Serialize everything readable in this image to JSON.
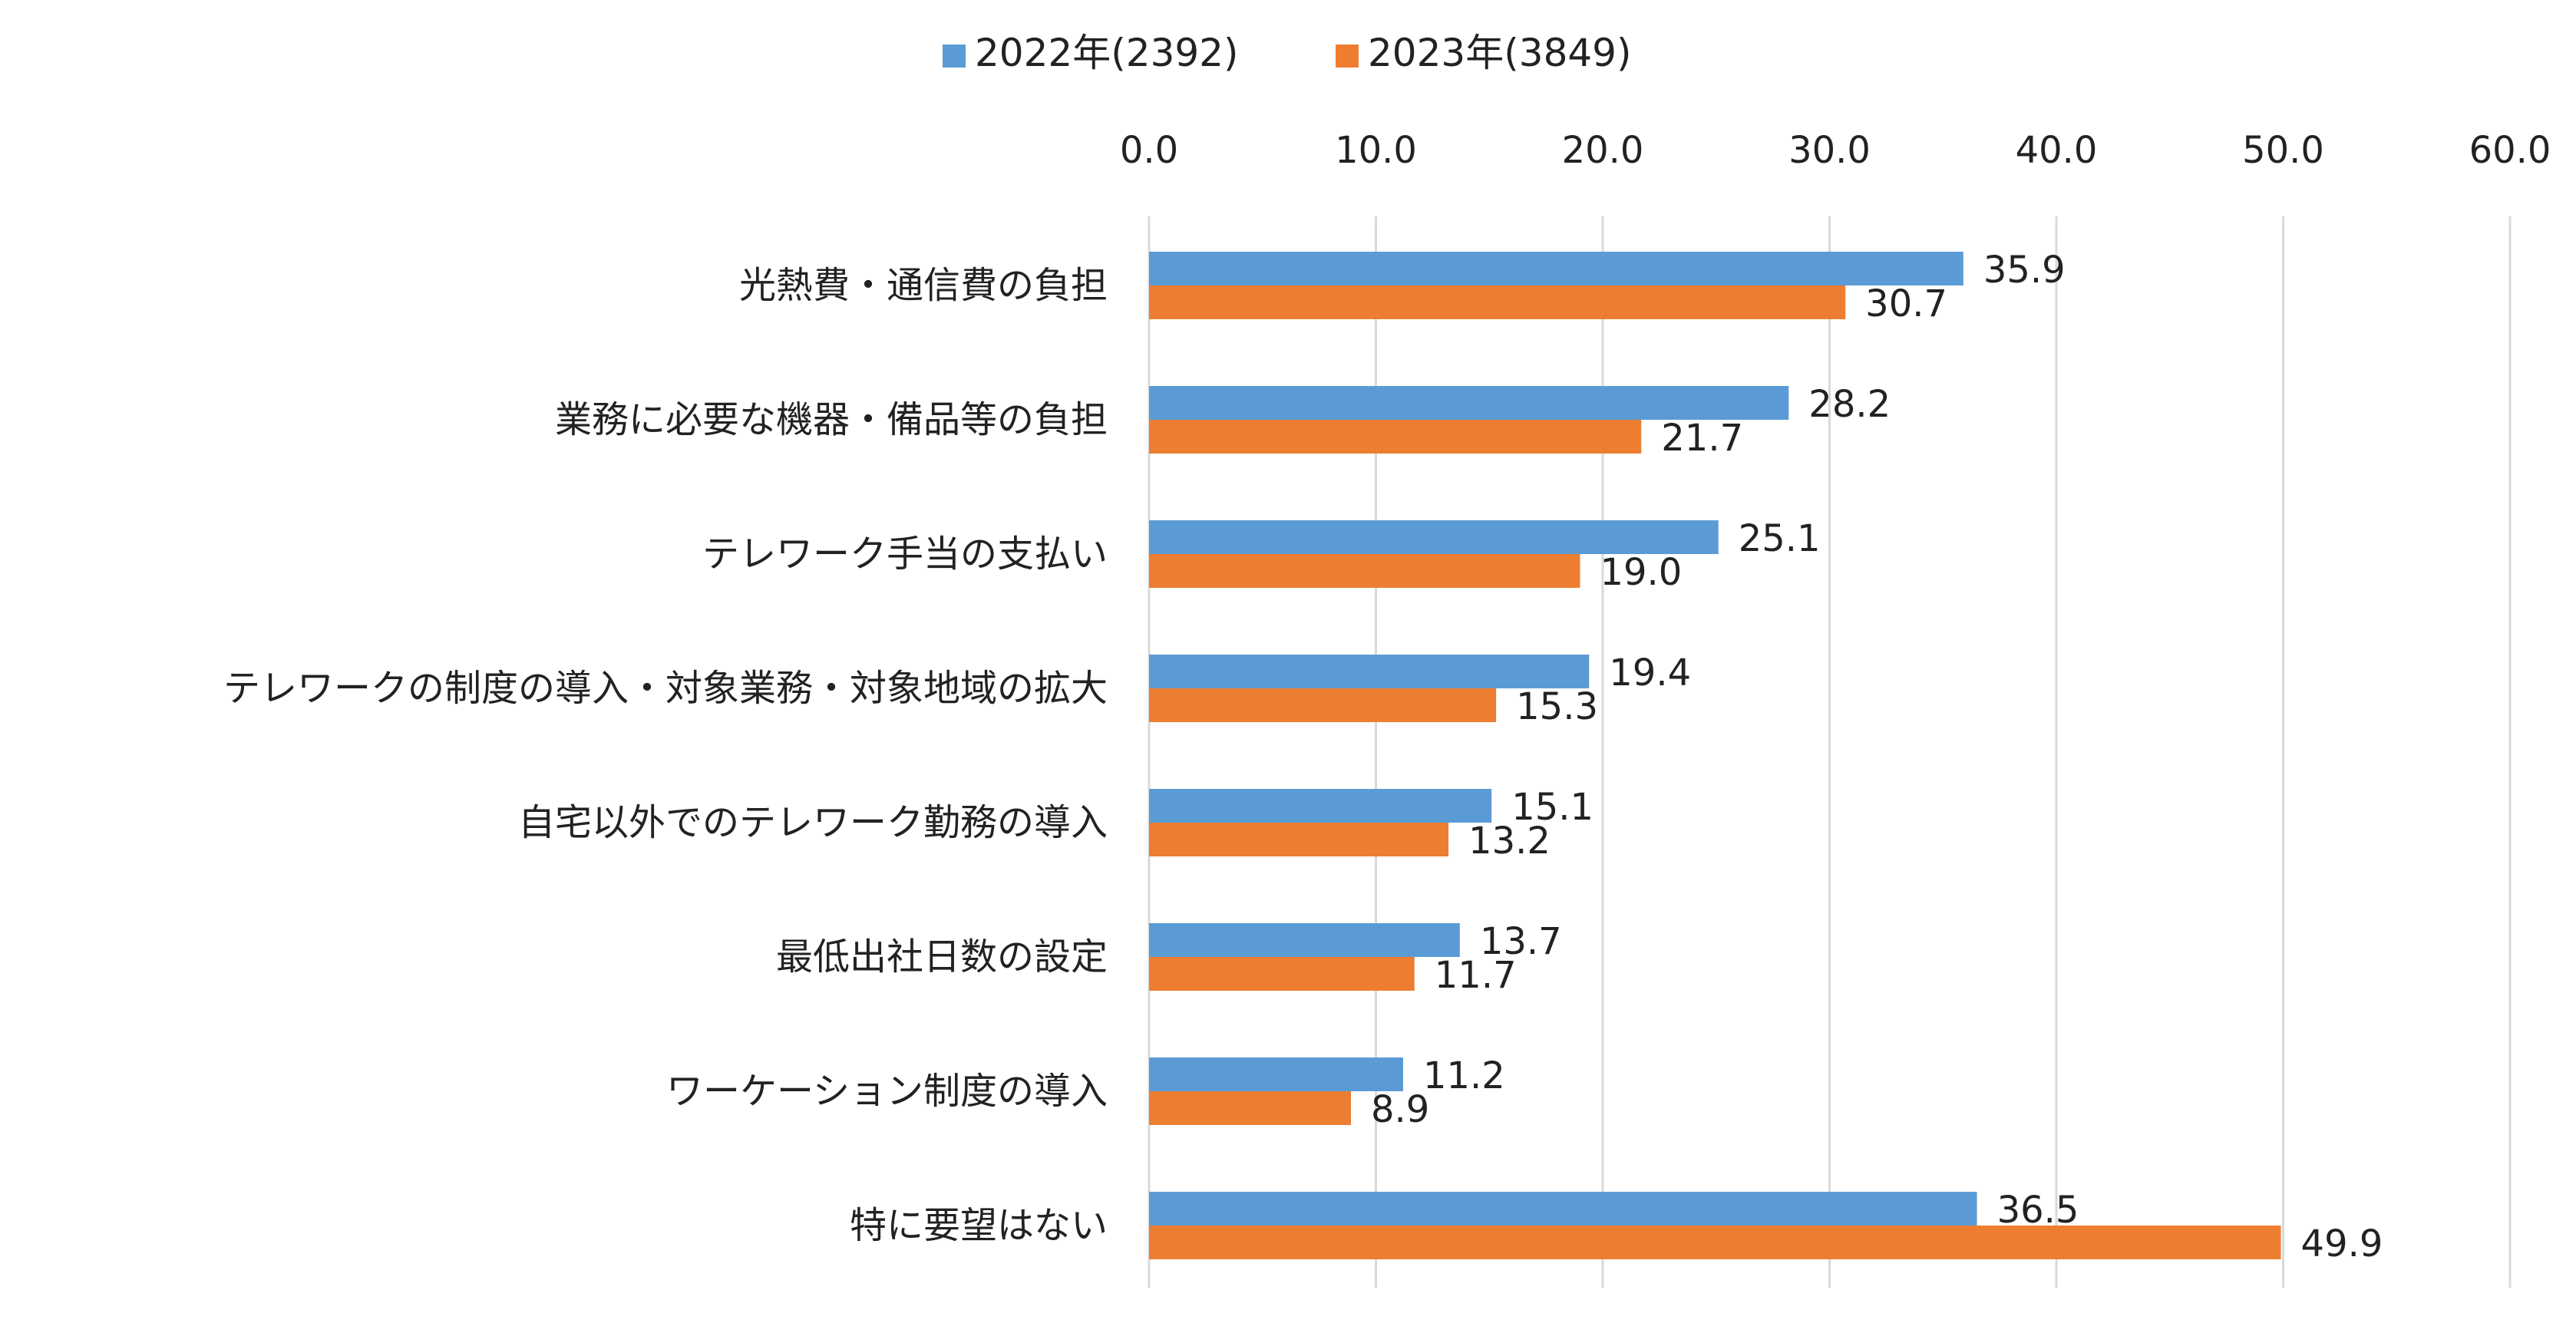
{
  "chart_data": {
    "type": "bar",
    "orientation": "horizontal",
    "categories": [
      "光熱費・通信費の負担",
      "業務に必要な機器・備品等の負担",
      "テレワーク手当の支払い",
      "テレワークの制度の導入・対象業務・対象地域の拡大",
      "自宅以外でのテレワーク勤務の導入",
      "最低出社日数の設定",
      "ワーケーション制度の導入",
      "特に要望はない"
    ],
    "series": [
      {
        "name": "2022年(2392)",
        "color": "#5b9bd5",
        "values": [
          35.9,
          28.2,
          25.1,
          19.4,
          15.1,
          13.7,
          11.2,
          36.5
        ]
      },
      {
        "name": "2023年(3849)",
        "color": "#ed7d31",
        "values": [
          30.7,
          21.7,
          19.0,
          15.3,
          13.2,
          11.7,
          8.9,
          49.9
        ]
      }
    ],
    "xlim": [
      0,
      60
    ],
    "ticks": [
      "0.0",
      "10.0",
      "20.0",
      "30.0",
      "40.0",
      "50.0",
      "60.0"
    ],
    "value_labels": [
      [
        "35.9",
        "28.2",
        "25.1",
        "19.4",
        "15.1",
        "13.7",
        "11.2",
        "36.5"
      ],
      [
        "30.7",
        "21.7",
        "19.0",
        "15.3",
        "13.2",
        "11.7",
        "8.9",
        "49.9"
      ]
    ],
    "axis_position": "top",
    "grid": true,
    "legend_position": "top-center"
  }
}
